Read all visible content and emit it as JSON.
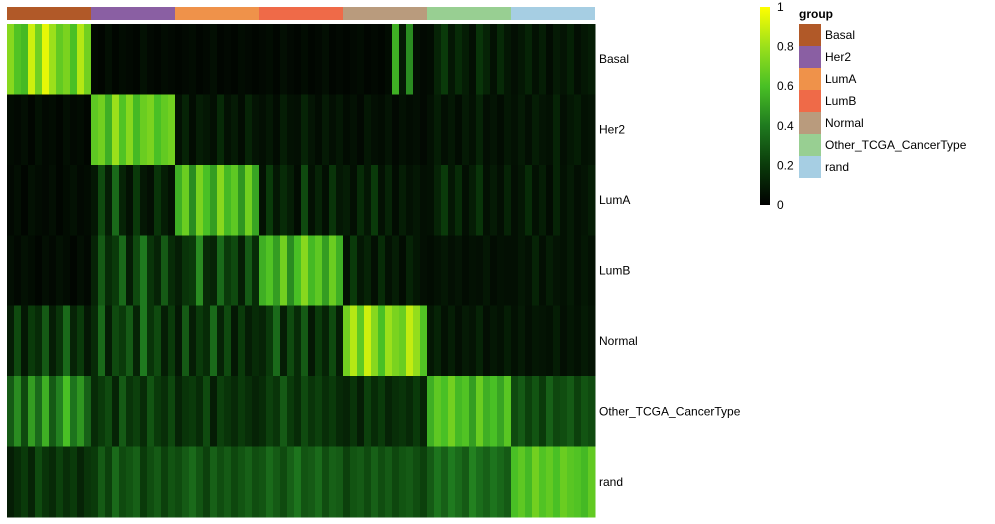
{
  "chart_data": {
    "type": "heatmap",
    "rows": [
      "Basal",
      "Her2",
      "LumA",
      "LumB",
      "Normal",
      "Other_TCGA_CancerType",
      "rand"
    ],
    "column_groups": [
      {
        "name": "Basal",
        "n": 12
      },
      {
        "name": "Her2",
        "n": 12
      },
      {
        "name": "LumA",
        "n": 12
      },
      {
        "name": "LumB",
        "n": 12
      },
      {
        "name": "Normal",
        "n": 12
      },
      {
        "name": "Other_TCGA_CancerType",
        "n": 12
      },
      {
        "name": "rand",
        "n": 12
      }
    ],
    "value_range": [
      0,
      1
    ],
    "colorscale": {
      "stops": [
        0,
        0.2,
        0.4,
        0.6,
        0.8,
        1
      ],
      "colors": [
        "#000000",
        "#0a3a0a",
        "#1f7a1f",
        "#49c025",
        "#9be01b",
        "#ffff00"
      ],
      "tick_labels": [
        "0",
        "0.2",
        "0.4",
        "0.6",
        "0.8",
        "1"
      ]
    },
    "legend": {
      "title": "group",
      "entries": [
        {
          "label": "Basal",
          "color": "#b15928"
        },
        {
          "label": "Her2",
          "color": "#8a5fa3"
        },
        {
          "label": "LumA",
          "color": "#ef924a"
        },
        {
          "label": "LumB",
          "color": "#ef6a48"
        },
        {
          "label": "Normal",
          "color": "#b99b7d"
        },
        {
          "label": "Other_TCGA_CancerType",
          "color": "#98cf92"
        },
        {
          "label": "rand",
          "color": "#a6cee3"
        }
      ],
      "placement": "top-right"
    },
    "matrix": [
      [
        0.75,
        0.62,
        0.58,
        0.9,
        0.7,
        0.95,
        0.8,
        0.66,
        0.72,
        0.6,
        0.85,
        0.7,
        0.03,
        0.02,
        0.05,
        0.02,
        0.04,
        0.03,
        0.02,
        0.06,
        0.03,
        0.02,
        0.04,
        0.03,
        0.02,
        0.03,
        0.04,
        0.02,
        0.03,
        0.05,
        0.02,
        0.03,
        0.02,
        0.04,
        0.03,
        0.02,
        0.03,
        0.04,
        0.02,
        0.05,
        0.03,
        0.02,
        0.04,
        0.02,
        0.03,
        0.05,
        0.02,
        0.03,
        0.02,
        0.03,
        0.04,
        0.02,
        0.03,
        0.02,
        0.04,
        0.55,
        0.08,
        0.45,
        0.05,
        0.03,
        0.04,
        0.12,
        0.2,
        0.08,
        0.15,
        0.1,
        0.05,
        0.18,
        0.12,
        0.06,
        0.14,
        0.08,
        0.05,
        0.08,
        0.12,
        0.06,
        0.1,
        0.04,
        0.09,
        0.07,
        0.11,
        0.05,
        0.08,
        0.1
      ],
      [
        0.04,
        0.03,
        0.05,
        0.02,
        0.06,
        0.03,
        0.04,
        0.02,
        0.05,
        0.03,
        0.04,
        0.02,
        0.65,
        0.7,
        0.55,
        0.8,
        0.62,
        0.75,
        0.58,
        0.68,
        0.72,
        0.6,
        0.66,
        0.7,
        0.06,
        0.12,
        0.04,
        0.1,
        0.08,
        0.05,
        0.14,
        0.06,
        0.09,
        0.04,
        0.12,
        0.07,
        0.05,
        0.08,
        0.04,
        0.1,
        0.06,
        0.05,
        0.12,
        0.07,
        0.04,
        0.09,
        0.05,
        0.08,
        0.04,
        0.06,
        0.03,
        0.08,
        0.05,
        0.04,
        0.07,
        0.03,
        0.06,
        0.04,
        0.05,
        0.03,
        0.06,
        0.1,
        0.05,
        0.08,
        0.04,
        0.09,
        0.06,
        0.12,
        0.05,
        0.07,
        0.04,
        0.08,
        0.06,
        0.09,
        0.05,
        0.1,
        0.07,
        0.06,
        0.12,
        0.05,
        0.08,
        0.1,
        0.06,
        0.07
      ],
      [
        0.03,
        0.05,
        0.02,
        0.06,
        0.04,
        0.03,
        0.05,
        0.02,
        0.04,
        0.06,
        0.03,
        0.04,
        0.08,
        0.25,
        0.1,
        0.35,
        0.12,
        0.06,
        0.2,
        0.08,
        0.05,
        0.18,
        0.1,
        0.06,
        0.55,
        0.68,
        0.45,
        0.72,
        0.6,
        0.5,
        0.75,
        0.58,
        0.65,
        0.48,
        0.7,
        0.52,
        0.06,
        0.2,
        0.08,
        0.15,
        0.1,
        0.04,
        0.25,
        0.06,
        0.12,
        0.05,
        0.18,
        0.08,
        0.1,
        0.05,
        0.15,
        0.08,
        0.2,
        0.06,
        0.12,
        0.04,
        0.1,
        0.06,
        0.08,
        0.05,
        0.06,
        0.12,
        0.2,
        0.08,
        0.15,
        0.05,
        0.1,
        0.18,
        0.06,
        0.09,
        0.05,
        0.12,
        0.05,
        0.08,
        0.15,
        0.06,
        0.1,
        0.04,
        0.12,
        0.06,
        0.09,
        0.05,
        0.07,
        0.1
      ],
      [
        0.05,
        0.03,
        0.06,
        0.04,
        0.02,
        0.05,
        0.03,
        0.06,
        0.04,
        0.02,
        0.05,
        0.03,
        0.12,
        0.3,
        0.15,
        0.2,
        0.35,
        0.1,
        0.25,
        0.4,
        0.18,
        0.12,
        0.3,
        0.15,
        0.1,
        0.18,
        0.2,
        0.45,
        0.15,
        0.12,
        0.35,
        0.2,
        0.25,
        0.1,
        0.3,
        0.15,
        0.55,
        0.62,
        0.5,
        0.7,
        0.45,
        0.6,
        0.75,
        0.58,
        0.65,
        0.5,
        0.68,
        0.55,
        0.06,
        0.2,
        0.08,
        0.12,
        0.05,
        0.15,
        0.06,
        0.1,
        0.04,
        0.12,
        0.08,
        0.05,
        0.04,
        0.06,
        0.08,
        0.05,
        0.07,
        0.04,
        0.06,
        0.05,
        0.08,
        0.04,
        0.06,
        0.05,
        0.05,
        0.08,
        0.06,
        0.12,
        0.05,
        0.1,
        0.07,
        0.06,
        0.09,
        0.05,
        0.08,
        0.06
      ],
      [
        0.1,
        0.25,
        0.08,
        0.2,
        0.15,
        0.3,
        0.1,
        0.18,
        0.35,
        0.12,
        0.2,
        0.08,
        0.15,
        0.35,
        0.1,
        0.25,
        0.2,
        0.3,
        0.12,
        0.4,
        0.18,
        0.25,
        0.1,
        0.2,
        0.08,
        0.3,
        0.1,
        0.2,
        0.15,
        0.35,
        0.12,
        0.25,
        0.08,
        0.2,
        0.1,
        0.15,
        0.12,
        0.2,
        0.35,
        0.1,
        0.25,
        0.15,
        0.3,
        0.08,
        0.2,
        0.12,
        0.25,
        0.1,
        0.7,
        0.85,
        0.65,
        0.9,
        0.75,
        0.6,
        0.8,
        0.72,
        0.68,
        0.88,
        0.78,
        0.62,
        0.08,
        0.12,
        0.06,
        0.1,
        0.05,
        0.09,
        0.07,
        0.12,
        0.05,
        0.08,
        0.06,
        0.1,
        0.06,
        0.09,
        0.05,
        0.08,
        0.07,
        0.06,
        0.1,
        0.05,
        0.08,
        0.06,
        0.09,
        0.07
      ],
      [
        0.3,
        0.45,
        0.25,
        0.5,
        0.35,
        0.55,
        0.3,
        0.42,
        0.6,
        0.38,
        0.48,
        0.32,
        0.15,
        0.2,
        0.25,
        0.12,
        0.3,
        0.18,
        0.22,
        0.15,
        0.28,
        0.2,
        0.16,
        0.24,
        0.12,
        0.18,
        0.2,
        0.15,
        0.25,
        0.1,
        0.22,
        0.18,
        0.14,
        0.2,
        0.16,
        0.12,
        0.15,
        0.22,
        0.18,
        0.3,
        0.2,
        0.15,
        0.25,
        0.18,
        0.22,
        0.16,
        0.2,
        0.14,
        0.12,
        0.18,
        0.1,
        0.22,
        0.15,
        0.2,
        0.12,
        0.16,
        0.18,
        0.14,
        0.2,
        0.12,
        0.55,
        0.65,
        0.6,
        0.7,
        0.58,
        0.62,
        0.5,
        0.68,
        0.55,
        0.6,
        0.52,
        0.64,
        0.25,
        0.3,
        0.22,
        0.28,
        0.2,
        0.32,
        0.24,
        0.26,
        0.3,
        0.22,
        0.28,
        0.25
      ],
      [
        0.1,
        0.15,
        0.2,
        0.12,
        0.25,
        0.18,
        0.14,
        0.22,
        0.16,
        0.2,
        0.12,
        0.18,
        0.2,
        0.3,
        0.22,
        0.35,
        0.25,
        0.28,
        0.32,
        0.2,
        0.26,
        0.3,
        0.22,
        0.28,
        0.25,
        0.3,
        0.35,
        0.28,
        0.22,
        0.32,
        0.26,
        0.3,
        0.24,
        0.28,
        0.32,
        0.26,
        0.28,
        0.35,
        0.3,
        0.25,
        0.32,
        0.38,
        0.28,
        0.3,
        0.35,
        0.26,
        0.32,
        0.3,
        0.22,
        0.28,
        0.3,
        0.25,
        0.32,
        0.26,
        0.3,
        0.24,
        0.28,
        0.3,
        0.26,
        0.22,
        0.3,
        0.38,
        0.32,
        0.4,
        0.35,
        0.3,
        0.42,
        0.36,
        0.32,
        0.38,
        0.34,
        0.3,
        0.6,
        0.65,
        0.58,
        0.7,
        0.62,
        0.66,
        0.6,
        0.68,
        0.64,
        0.62,
        0.58,
        0.66
      ]
    ]
  }
}
